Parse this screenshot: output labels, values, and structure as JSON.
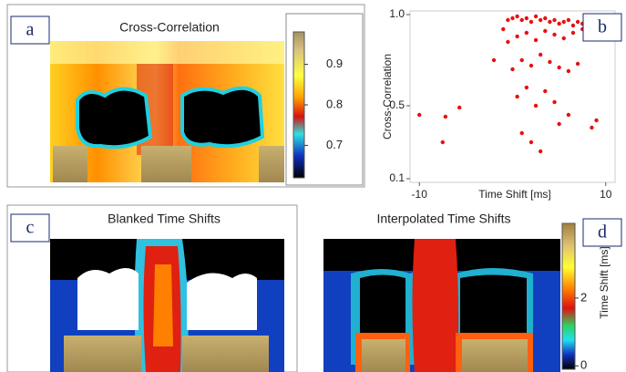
{
  "chart_data": [
    {
      "type": "heatmap",
      "panel_label": "a",
      "title": "Cross-Correlation",
      "colorbar_lim": [
        0.62,
        0.98
      ],
      "colorbar_ticks": [
        0.7,
        0.8,
        0.9
      ]
    },
    {
      "type": "scatter",
      "panel_label": "b",
      "x_label": "Time Shift [ms]",
      "y_label": "Cross-Correlation",
      "color": "#e81010",
      "xlim": [
        -11,
        11
      ],
      "ylim": [
        0.08,
        1.02
      ],
      "xticks": [
        -10,
        10
      ],
      "yticks": [
        0.1,
        0.5,
        {
          "value": 1,
          "label": "1.0"
        }
      ],
      "x": [
        -10,
        -7.2,
        -5.7,
        -7.5,
        -2,
        -1,
        -0.5,
        0,
        0.5,
        1,
        1.5,
        2,
        2.5,
        3,
        3.5,
        4,
        4.5,
        5,
        5.5,
        6,
        6.5,
        7,
        7.5,
        8,
        -0.5,
        0.5,
        1.5,
        2.5,
        3.5,
        4.5,
        5.5,
        6.5,
        7.5,
        0,
        1,
        2,
        3,
        4,
        5,
        6,
        7,
        0.5,
        1.5,
        2.5,
        3.5,
        4.5,
        6,
        1,
        2,
        3,
        5,
        8.5,
        9
      ],
      "y": [
        0.45,
        0.44,
        0.49,
        0.3,
        0.75,
        0.92,
        0.97,
        0.98,
        0.99,
        0.97,
        0.98,
        0.96,
        0.99,
        0.97,
        0.98,
        0.96,
        0.97,
        0.95,
        0.96,
        0.97,
        0.94,
        0.96,
        0.95,
        0.97,
        0.85,
        0.88,
        0.9,
        0.86,
        0.91,
        0.89,
        0.87,
        0.9,
        0.92,
        0.7,
        0.75,
        0.72,
        0.78,
        0.74,
        0.71,
        0.69,
        0.73,
        0.55,
        0.6,
        0.5,
        0.58,
        0.52,
        0.45,
        0.35,
        0.3,
        0.25,
        0.4,
        0.38,
        0.42
      ]
    },
    {
      "type": "heatmap",
      "panel_label": "c",
      "title": "Blanked Time Shifts"
    },
    {
      "type": "heatmap",
      "panel_label": "d",
      "title": "Interpolated Time Shifts",
      "colorbar_label": "Time Shift [ms]",
      "colorbar_lim": [
        -0.1,
        4.2
      ],
      "colorbar_ticks": [
        0,
        2
      ]
    }
  ]
}
